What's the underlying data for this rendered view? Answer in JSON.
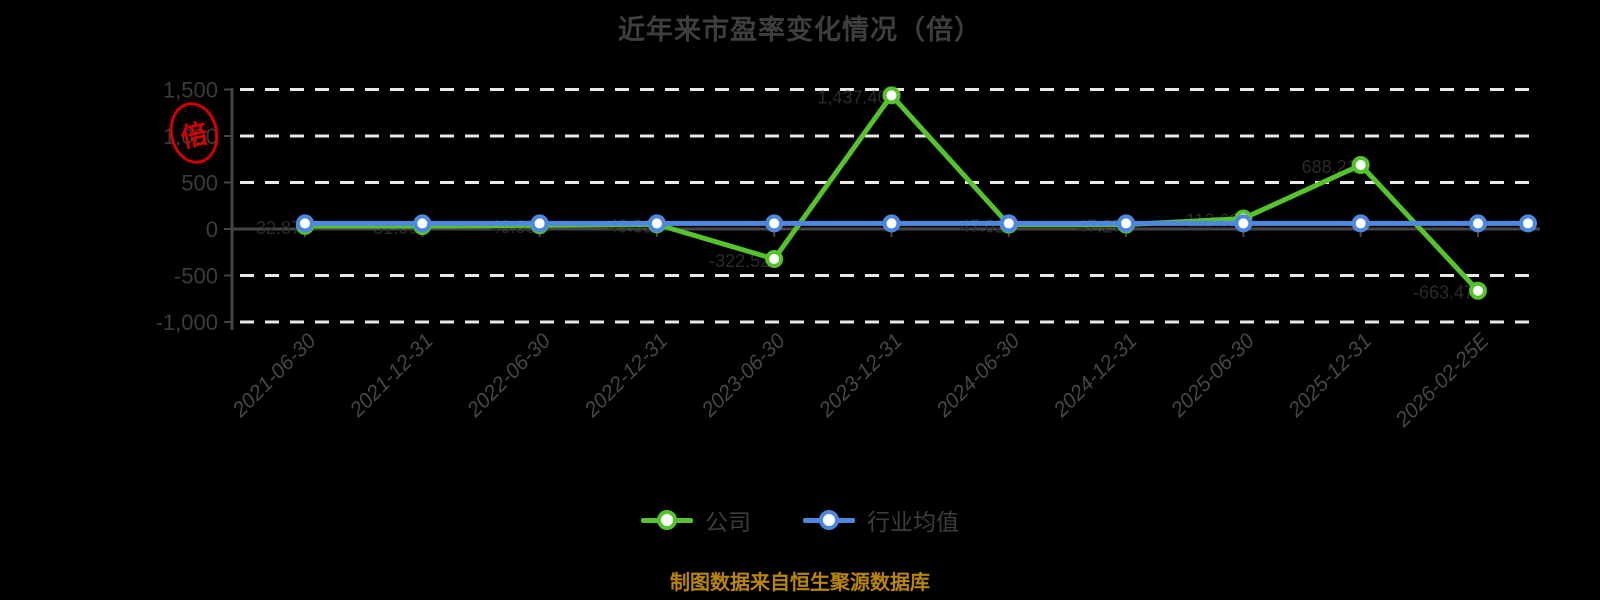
{
  "title": "近年来市盈率变化情况（倍）",
  "unit_stamp": "倍",
  "caption": "制图数据来自恒生聚源数据库",
  "legend": [
    {
      "label": "公司",
      "color": "#56c22d"
    },
    {
      "label": "行业均值",
      "color": "#4e87e0"
    }
  ],
  "colors": {
    "background": "#000000",
    "title_text": "#3e3e3e",
    "axis_line": "#454545",
    "tick_text": "#3c3c3c",
    "x_label_text": "#464646",
    "gridline": "#e8e8e8",
    "data_label_text": "#2b2b2b",
    "company_green": "#56c22d",
    "industry_blue": "#4e87e0",
    "stamp_red": "#e60000",
    "caption_gold": "#b8860b"
  },
  "chart_data": {
    "type": "line",
    "title": "近年来市盈率变化情况（倍）",
    "unit": "倍",
    "categories": [
      "2021-06-30",
      "2021-12-31",
      "2022-06-30",
      "2022-12-31",
      "2023-06-30",
      "2023-12-31",
      "2024-06-30",
      "2024-12-31",
      "2025-06-30",
      "2025-12-31",
      "2026-02-25E"
    ],
    "series": [
      {
        "name": "公司",
        "color": "#56c22d",
        "values": [
          32.87,
          31.09,
          40.83,
          49.31,
          -322.52,
          1437.4,
          47.02,
          47.27,
          112.62,
          688.21,
          -663.47
        ],
        "labels": [
          "32.87",
          "31.09",
          "40.83",
          "49.31",
          "-322.52",
          "1,437.40",
          "47.02",
          "47.27",
          "112.62",
          "688.21",
          "-663.47"
        ]
      },
      {
        "name": "行业均值",
        "color": "#4e87e0",
        "values": [
          60,
          60,
          60,
          60,
          60,
          60,
          60,
          60,
          60,
          60,
          60
        ],
        "extend_to_right_edge": true
      }
    ],
    "ylim": [
      -1000,
      1500
    ],
    "yticks": [
      1500,
      1000,
      500,
      0,
      -500,
      -1000
    ],
    "ytick_labels": [
      "1,500",
      "1,000",
      "500",
      "0",
      "-500",
      "-1,000"
    ],
    "grid": "horizontal-dashed",
    "legend_position": "bottom",
    "source_note": "制图数据来自恒生聚源数据库"
  }
}
